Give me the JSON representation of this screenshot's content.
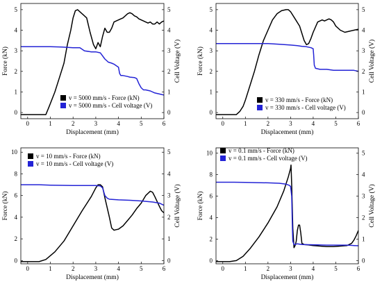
{
  "colors": {
    "force": "#000000",
    "voltage": "#2323d6",
    "frame": "#000000"
  },
  "chart_data": [
    {
      "type": "line",
      "xlabel": "Displacement (mm)",
      "ylabel": "Force (kN)",
      "y2label": "Cell Voltage (V)",
      "xlim": [
        -0.3,
        6
      ],
      "ylim": [
        -0.3,
        5.3
      ],
      "y2lim": [
        -0.3,
        5.3
      ],
      "xticks": [
        0,
        1,
        2,
        3,
        4,
        5,
        6
      ],
      "yticks": [
        0,
        1,
        2,
        3,
        4,
        5
      ],
      "y2ticks": [
        0,
        1,
        2,
        3,
        4,
        5
      ],
      "legend_position": "bottom-right",
      "series": [
        {
          "name": "v = 5000 mm/s - Force (kN)",
          "axis": "left",
          "color": "#000000",
          "x": [
            -0.3,
            0.8,
            0.95,
            1.2,
            1.4,
            1.6,
            1.75,
            1.9,
            2.0,
            2.1,
            2.2,
            2.3,
            2.45,
            2.6,
            2.75,
            2.9,
            3.0,
            3.1,
            3.2,
            3.3,
            3.4,
            3.5,
            3.6,
            3.7,
            3.8,
            3.9,
            4.0,
            4.1,
            4.2,
            4.3,
            4.4,
            4.5,
            4.6,
            4.7,
            4.8,
            4.9,
            5.0,
            5.1,
            5.2,
            5.3,
            5.4,
            5.5,
            5.6,
            5.7,
            5.8,
            5.9,
            6.0
          ],
          "y": [
            -0.1,
            -0.1,
            0.3,
            1.0,
            1.7,
            2.4,
            3.3,
            4.0,
            4.6,
            4.95,
            5.0,
            4.9,
            4.75,
            4.6,
            3.9,
            3.3,
            3.1,
            3.4,
            3.2,
            3.7,
            4.1,
            3.9,
            3.9,
            4.1,
            4.4,
            4.45,
            4.5,
            4.55,
            4.6,
            4.7,
            4.8,
            4.85,
            4.8,
            4.7,
            4.65,
            4.55,
            4.5,
            4.45,
            4.4,
            4.35,
            4.4,
            4.3,
            4.3,
            4.4,
            4.3,
            4.4,
            4.45
          ]
        },
        {
          "name": "v = 5000  mm/s  - Cell voltage (V)",
          "axis": "right",
          "color": "#2323d6",
          "x": [
            -0.3,
            0.5,
            1.0,
            1.5,
            2.0,
            2.3,
            2.5,
            2.8,
            3.0,
            3.2,
            3.4,
            3.5,
            3.55,
            3.7,
            3.8,
            4.0,
            4.05,
            4.1,
            4.2,
            4.4,
            4.5,
            4.7,
            4.8,
            4.9,
            5.0,
            5.1,
            5.2,
            5.4,
            5.6,
            5.8,
            6.0
          ],
          "y": [
            3.2,
            3.2,
            3.2,
            3.18,
            3.15,
            3.15,
            3.0,
            2.95,
            2.95,
            2.9,
            2.6,
            2.5,
            2.45,
            2.4,
            2.35,
            2.2,
            1.9,
            1.8,
            1.8,
            1.75,
            1.72,
            1.7,
            1.65,
            1.4,
            1.2,
            1.1,
            1.1,
            1.05,
            0.95,
            0.9,
            0.85
          ]
        }
      ]
    },
    {
      "type": "line",
      "xlabel": "Displacement (mm)",
      "ylabel": "Force (kN)",
      "y2label": "Cell Voltage (V)",
      "xlim": [
        -0.3,
        6
      ],
      "ylim": [
        -0.3,
        5.3
      ],
      "y2lim": [
        -0.3,
        5.3
      ],
      "xticks": [
        0,
        1,
        2,
        3,
        4,
        5,
        6
      ],
      "yticks": [
        0,
        1,
        2,
        3,
        4,
        5
      ],
      "y2ticks": [
        0,
        1,
        2,
        3,
        4,
        5
      ],
      "legend_position": "bottom-right",
      "series": [
        {
          "name": "v = 330 mm/s - Force (kN)",
          "axis": "left",
          "color": "#000000",
          "x": [
            -0.3,
            0.6,
            0.75,
            0.9,
            1.0,
            1.2,
            1.4,
            1.6,
            1.8,
            2.0,
            2.2,
            2.4,
            2.6,
            2.8,
            2.9,
            3.0,
            3.2,
            3.4,
            3.6,
            3.7,
            3.8,
            3.9,
            4.0,
            4.2,
            4.4,
            4.5,
            4.6,
            4.7,
            4.8,
            4.9,
            5.0,
            5.2,
            5.4,
            5.6,
            5.8,
            6.0
          ],
          "y": [
            -0.1,
            -0.1,
            0.05,
            0.3,
            0.6,
            1.3,
            2.0,
            2.8,
            3.5,
            4.0,
            4.5,
            4.8,
            4.95,
            5.0,
            5.0,
            4.9,
            4.55,
            4.2,
            3.5,
            3.3,
            3.35,
            3.6,
            3.9,
            4.4,
            4.5,
            4.45,
            4.5,
            4.55,
            4.5,
            4.4,
            4.2,
            4.0,
            3.9,
            3.95,
            4.0,
            4.05
          ]
        },
        {
          "name": "v = 330  mm/s  - Cell voltage (V)",
          "axis": "right",
          "color": "#2323d6",
          "x": [
            -0.3,
            0.5,
            1.0,
            1.5,
            2.0,
            2.5,
            3.0,
            3.3,
            3.5,
            3.7,
            3.9,
            4.0,
            4.02,
            4.05,
            4.1,
            4.3,
            4.6,
            4.9,
            5.2,
            5.5,
            5.8,
            6.0
          ],
          "y": [
            3.35,
            3.35,
            3.35,
            3.35,
            3.35,
            3.32,
            3.28,
            3.25,
            3.22,
            3.2,
            3.15,
            3.1,
            2.8,
            2.3,
            2.15,
            2.1,
            2.1,
            2.05,
            2.05,
            2.05,
            2.05,
            2.0
          ]
        }
      ]
    },
    {
      "type": "line",
      "xlabel": "Displacement (mm)",
      "ylabel": "Force (kN)",
      "y2label": "Cell Voltage (V)",
      "xlim": [
        -0.3,
        6
      ],
      "ylim": [
        -0.3,
        10.4
      ],
      "y2lim": [
        -0.15,
        5.2
      ],
      "xticks": [
        0,
        1,
        2,
        3,
        4,
        5,
        6
      ],
      "yticks": [
        0,
        2,
        4,
        6,
        8,
        10
      ],
      "y2ticks": [
        0,
        1,
        2,
        3,
        4,
        5
      ],
      "legend_position": "top-left",
      "series": [
        {
          "name": "v = 10 mm/s - Force (kN)",
          "axis": "left",
          "color": "#000000",
          "x": [
            -0.3,
            0.5,
            0.8,
            1.2,
            1.6,
            2.0,
            2.4,
            2.8,
            3.0,
            3.1,
            3.2,
            3.3,
            3.4,
            3.6,
            3.7,
            3.8,
            3.9,
            4.0,
            4.2,
            4.4,
            4.6,
            4.8,
            5.0,
            5.2,
            5.4,
            5.5,
            5.6,
            5.8,
            5.9,
            6.0
          ],
          "y": [
            -0.1,
            -0.1,
            0.1,
            0.8,
            1.8,
            3.2,
            4.6,
            5.9,
            6.7,
            7.0,
            7.0,
            6.8,
            5.8,
            4.0,
            3.0,
            2.8,
            2.85,
            2.9,
            3.2,
            3.7,
            4.2,
            4.8,
            5.3,
            6.0,
            6.4,
            6.3,
            5.9,
            5.0,
            4.6,
            4.4
          ]
        },
        {
          "name": "v = 10  mm/s  - Cell voltage (V)",
          "axis": "right",
          "color": "#2323d6",
          "x": [
            -0.3,
            0.5,
            1.0,
            1.5,
            2.0,
            2.5,
            3.0,
            3.2,
            3.3,
            3.4,
            3.5,
            3.6,
            4.0,
            4.5,
            5.0,
            5.5,
            5.8,
            6.0
          ],
          "y": [
            3.5,
            3.5,
            3.48,
            3.47,
            3.46,
            3.46,
            3.46,
            3.44,
            3.35,
            3.0,
            2.88,
            2.83,
            2.8,
            2.78,
            2.75,
            2.7,
            2.65,
            2.55
          ]
        }
      ]
    },
    {
      "type": "line",
      "xlabel": "Displacement (mm)",
      "ylabel": "Force (kN)",
      "y2label": "Cell Voltage (V)",
      "xlim": [
        -0.3,
        6
      ],
      "ylim": [
        -0.3,
        10.5
      ],
      "y2lim": [
        -0.15,
        5.25
      ],
      "xticks": [
        0,
        1,
        2,
        3,
        4,
        5,
        6
      ],
      "yticks": [
        0,
        2,
        4,
        6,
        8,
        10
      ],
      "y2ticks": [
        0,
        1,
        2,
        3,
        4,
        5
      ],
      "legend_position": "top-left",
      "series": [
        {
          "name": "v = 0.1 mm/s - Force (kN)",
          "axis": "left",
          "color": "#000000",
          "x": [
            -0.3,
            0.3,
            0.6,
            0.9,
            1.2,
            1.6,
            2.0,
            2.4,
            2.7,
            2.9,
            3.0,
            3.02,
            3.05,
            3.1,
            3.15,
            3.2,
            3.25,
            3.3,
            3.35,
            3.4,
            3.45,
            3.5,
            3.6,
            3.8,
            4.0,
            4.3,
            4.6,
            4.9,
            5.2,
            5.5,
            5.7,
            5.8,
            5.9,
            6.0
          ],
          "y": [
            -0.1,
            -0.1,
            0.0,
            0.4,
            1.1,
            2.2,
            3.5,
            5.0,
            6.5,
            7.8,
            8.6,
            8.9,
            7.0,
            3.0,
            1.2,
            1.4,
            1.8,
            2.8,
            3.3,
            3.3,
            2.6,
            1.6,
            1.5,
            1.45,
            1.4,
            1.35,
            1.3,
            1.3,
            1.35,
            1.4,
            1.6,
            1.9,
            2.3,
            2.8
          ]
        },
        {
          "name": "v = 0.1  mm/s  - Cell voltage (V)",
          "axis": "right",
          "color": "#2323d6",
          "x": [
            -0.3,
            0.5,
            1.0,
            1.5,
            2.0,
            2.5,
            2.8,
            2.95,
            3.0,
            3.05,
            3.08,
            3.1,
            3.15,
            3.2,
            3.3,
            3.5,
            3.8,
            4.2,
            4.6,
            5.0,
            5.5,
            5.8,
            6.0
          ],
          "y": [
            3.65,
            3.65,
            3.64,
            3.63,
            3.62,
            3.6,
            3.56,
            3.5,
            3.45,
            3.0,
            1.5,
            0.9,
            0.75,
            0.75,
            0.78,
            0.75,
            0.74,
            0.73,
            0.72,
            0.72,
            0.72,
            0.7,
            0.69
          ]
        }
      ]
    }
  ]
}
